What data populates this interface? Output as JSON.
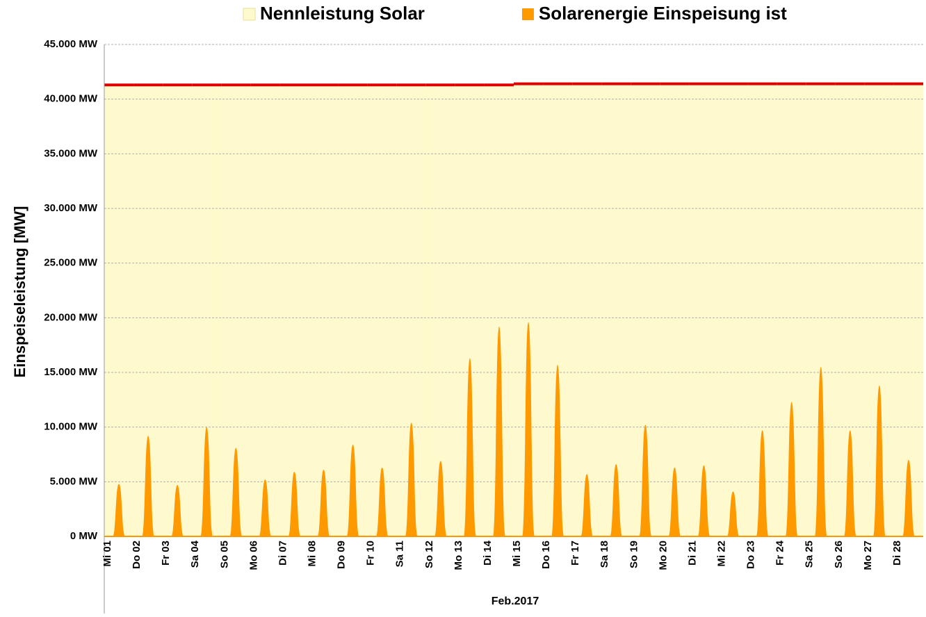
{
  "chart_data": {
    "type": "solar",
    "y_label": "Einspeiseleistung  [MW]",
    "x_label": "Feb.2017",
    "categories": [
      "Mi 01",
      "Do 02",
      "Fr 03",
      "Sa 04",
      "So 05",
      "Mo 06",
      "Di 07",
      "Mi 08",
      "Do 09",
      "Fr 10",
      "Sa 11",
      "So 12",
      "Mo 13",
      "Di 14",
      "Mi 15",
      "Do 16",
      "Fr 17",
      "Sa 18",
      "So 19",
      "Mo 20",
      "Di 21",
      "Mi 22",
      "Do 23",
      "Fr 24",
      "Sa 25",
      "So 26",
      "Mo 27",
      "Di 28"
    ],
    "series": [
      {
        "name": "Nennleistung Solar",
        "color": "#fffacd",
        "line_color": "#e00000",
        "values": [
          41300,
          41300,
          41300,
          41300,
          41300,
          41300,
          41300,
          41300,
          41300,
          41300,
          41300,
          41300,
          41300,
          41300,
          41400,
          41400,
          41400,
          41400,
          41400,
          41400,
          41400,
          41400,
          41400,
          41400,
          41400,
          41400,
          41400,
          41400
        ]
      },
      {
        "name": "Solarenergie Einspeisung ist",
        "color": "#ff9900",
        "values": [
          4800,
          9200,
          4700,
          10000,
          8100,
          5200,
          5900,
          6100,
          8400,
          6300,
          10400,
          6900,
          16300,
          19200,
          19600,
          15700,
          5700,
          6600,
          10200,
          6300,
          6500,
          4100,
          9700,
          12300,
          15500,
          9700,
          13800,
          7000
        ]
      }
    ],
    "ylim": [
      0,
      45000
    ],
    "yticks": [
      {
        "value": 0,
        "label": "0 MW"
      },
      {
        "value": 5000,
        "label": "5.000 MW"
      },
      {
        "value": 10000,
        "label": "10.000 MW"
      },
      {
        "value": 15000,
        "label": "15.000 MW"
      },
      {
        "value": 20000,
        "label": "20.000 MW"
      },
      {
        "value": 25000,
        "label": "25.000 MW"
      },
      {
        "value": 30000,
        "label": "30.000 MW"
      },
      {
        "value": 35000,
        "label": "35.000 MW"
      },
      {
        "value": 40000,
        "label": "40.000 MW"
      },
      {
        "value": 45000,
        "label": "45.000 MW"
      }
    ],
    "grid": true
  }
}
